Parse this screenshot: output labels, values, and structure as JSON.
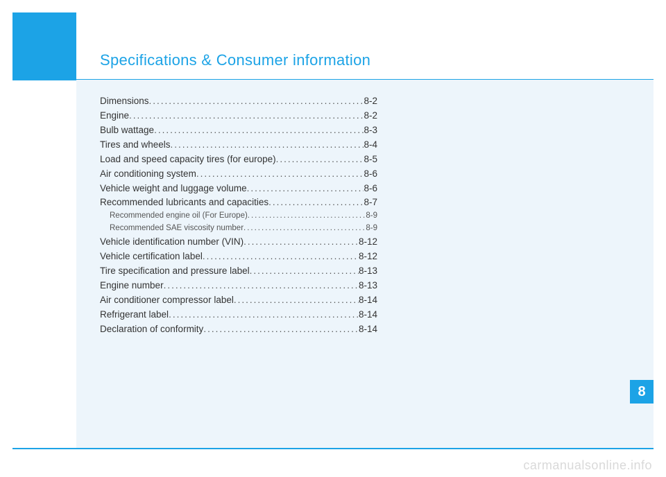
{
  "title": "Specifications & Consumer information",
  "chapter_number": "8",
  "watermark": "carmanualsonline.info",
  "colors": {
    "accent": "#1ca3e6",
    "light_panel": "#edf5fb",
    "text": "#333333",
    "subtext": "#555555",
    "watermark": "#d9d9d9"
  },
  "toc": [
    {
      "label": "Dimensions",
      "page": "8-2",
      "level": 0
    },
    {
      "label": "Engine",
      "page": "8-2",
      "level": 0
    },
    {
      "label": "Bulb wattage",
      "page": "8-3",
      "level": 0
    },
    {
      "label": "Tires and wheels",
      "page": "8-4",
      "level": 0
    },
    {
      "label": "Load and speed capacity tires (for europe)",
      "page": "8-5",
      "level": 0
    },
    {
      "label": "Air conditioning system",
      "page": "8-6",
      "level": 0
    },
    {
      "label": "Vehicle weight and luggage volume",
      "page": "8-6",
      "level": 0
    },
    {
      "label": "Recommended lubricants and capacities",
      "page": "8-7",
      "level": 0
    },
    {
      "label": "Recommended engine oil (For Europe)",
      "page": "8-9",
      "level": 1
    },
    {
      "label": "Recommended SAE viscosity number",
      "page": "8-9",
      "level": 1
    },
    {
      "label": "Vehicle identification number (VIN)",
      "page": "8-12",
      "level": 0
    },
    {
      "label": "Vehicle certification label",
      "page": "8-12",
      "level": 0
    },
    {
      "label": "Tire specification and pressure label",
      "page": "8-13",
      "level": 0
    },
    {
      "label": "Engine number",
      "page": "8-13",
      "level": 0
    },
    {
      "label": "Air conditioner compressor label",
      "page": "8-14",
      "level": 0
    },
    {
      "label": "Refrigerant label",
      "page": "8-14",
      "level": 0
    },
    {
      "label": "Declaration of conformity",
      "page": "8-14",
      "level": 0
    }
  ]
}
